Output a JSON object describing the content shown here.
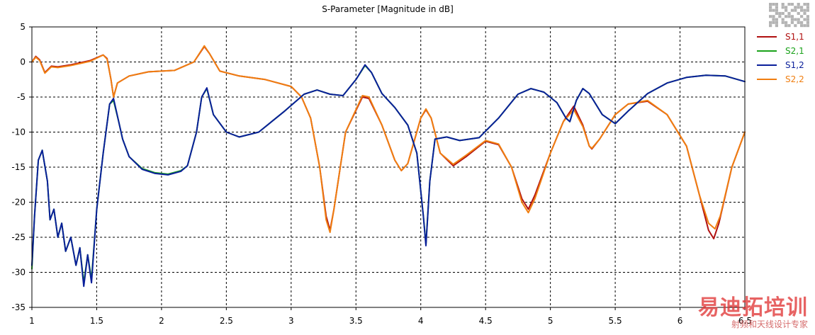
{
  "chart_data": {
    "type": "line",
    "title": "S-Parameter [Magnitude in dB]",
    "xlabel": "",
    "ylabel": "",
    "xlim": [
      1,
      6.5
    ],
    "ylim": [
      -35,
      5
    ],
    "xticks": [
      1,
      1.5,
      2,
      2.5,
      3,
      3.5,
      4,
      4.5,
      5,
      5.5,
      6,
      6.5
    ],
    "xtick_labels": [
      "1",
      "1.5",
      "2",
      "2.5",
      "3",
      "3.5",
      "4",
      "4.5",
      "5",
      "5.5",
      "6",
      "6.5"
    ],
    "yticks": [
      5,
      0,
      -5,
      -10,
      -15,
      -20,
      -25,
      -30,
      -35
    ],
    "ytick_labels": [
      "5",
      "0",
      "-5",
      "-10",
      "-15",
      "-20",
      "-25",
      "-30",
      "-35"
    ],
    "grid": true,
    "legend_position": "right",
    "series": [
      {
        "name": "S1,1",
        "color": "#b01010",
        "points": [
          [
            1.0,
            0.0
          ],
          [
            1.03,
            0.8
          ],
          [
            1.06,
            0.3
          ],
          [
            1.1,
            -1.5
          ],
          [
            1.15,
            -0.6
          ],
          [
            1.2,
            -0.7
          ],
          [
            1.3,
            -0.4
          ],
          [
            1.45,
            0.2
          ],
          [
            1.55,
            1.0
          ],
          [
            1.58,
            0.5
          ],
          [
            1.61,
            -2.5
          ],
          [
            1.63,
            -5.0
          ],
          [
            1.66,
            -3.0
          ],
          [
            1.75,
            -2.0
          ],
          [
            1.9,
            -1.4
          ],
          [
            2.1,
            -1.2
          ],
          [
            2.25,
            0.0
          ],
          [
            2.33,
            2.2
          ],
          [
            2.37,
            1.2
          ],
          [
            2.45,
            -1.3
          ],
          [
            2.6,
            -2.0
          ],
          [
            2.8,
            -2.5
          ],
          [
            3.0,
            -3.5
          ],
          [
            3.08,
            -5.0
          ],
          [
            3.15,
            -8.0
          ],
          [
            3.22,
            -15.0
          ],
          [
            3.27,
            -22.0
          ],
          [
            3.3,
            -24.0
          ],
          [
            3.33,
            -21.0
          ],
          [
            3.42,
            -10.0
          ],
          [
            3.55,
            -5.0
          ],
          [
            3.6,
            -5.2
          ],
          [
            3.7,
            -9.0
          ],
          [
            3.8,
            -14.0
          ],
          [
            3.85,
            -15.5
          ],
          [
            3.9,
            -14.5
          ],
          [
            4.0,
            -8.0
          ],
          [
            4.04,
            -6.8
          ],
          [
            4.08,
            -8.0
          ],
          [
            4.15,
            -13.0
          ],
          [
            4.25,
            -14.8
          ],
          [
            4.35,
            -13.5
          ],
          [
            4.5,
            -11.3
          ],
          [
            4.6,
            -11.8
          ],
          [
            4.7,
            -15.0
          ],
          [
            4.78,
            -19.5
          ],
          [
            4.83,
            -21.0
          ],
          [
            4.88,
            -19.0
          ],
          [
            5.0,
            -13.0
          ],
          [
            5.1,
            -8.5
          ],
          [
            5.18,
            -6.3
          ],
          [
            5.25,
            -9.0
          ],
          [
            5.3,
            -12.0
          ],
          [
            5.32,
            -12.4
          ],
          [
            5.38,
            -11.0
          ],
          [
            5.5,
            -7.5
          ],
          [
            5.6,
            -6.0
          ],
          [
            5.75,
            -5.6
          ],
          [
            5.9,
            -7.5
          ],
          [
            6.05,
            -12.0
          ],
          [
            6.15,
            -19.0
          ],
          [
            6.22,
            -24.0
          ],
          [
            6.26,
            -25.2
          ],
          [
            6.3,
            -23.0
          ],
          [
            6.4,
            -15.0
          ],
          [
            6.5,
            -10.0
          ]
        ]
      },
      {
        "name": "S2,1",
        "color": "#1aa21a",
        "points": [
          [
            1.0,
            -29.5
          ],
          [
            1.02,
            -22.0
          ],
          [
            1.05,
            -14.0
          ],
          [
            1.08,
            -12.6
          ],
          [
            1.12,
            -17.0
          ],
          [
            1.14,
            -22.5
          ],
          [
            1.17,
            -21.0
          ],
          [
            1.2,
            -25.0
          ],
          [
            1.23,
            -23.0
          ],
          [
            1.26,
            -27.0
          ],
          [
            1.3,
            -25.0
          ],
          [
            1.34,
            -29.0
          ],
          [
            1.37,
            -26.5
          ],
          [
            1.4,
            -31.5
          ],
          [
            1.43,
            -27.5
          ],
          [
            1.46,
            -31.0
          ],
          [
            1.5,
            -21.0
          ],
          [
            1.55,
            -13.0
          ],
          [
            1.6,
            -6.0
          ],
          [
            1.63,
            -5.5
          ],
          [
            1.67,
            -8.5
          ],
          [
            1.7,
            -11.0
          ],
          [
            1.75,
            -13.5
          ],
          [
            1.85,
            -15.2
          ],
          [
            1.95,
            -15.8
          ],
          [
            2.05,
            -16.0
          ],
          [
            2.15,
            -15.5
          ],
          [
            2.2,
            -14.8
          ],
          [
            2.27,
            -10.0
          ],
          [
            2.31,
            -5.0
          ],
          [
            2.35,
            -3.8
          ],
          [
            2.4,
            -7.5
          ],
          [
            2.5,
            -10.0
          ],
          [
            2.6,
            -10.7
          ],
          [
            2.75,
            -10.0
          ],
          [
            2.95,
            -7.0
          ],
          [
            3.1,
            -4.6
          ],
          [
            3.2,
            -4.0
          ],
          [
            3.3,
            -4.6
          ],
          [
            3.4,
            -4.8
          ],
          [
            3.5,
            -2.5
          ],
          [
            3.57,
            -0.5
          ],
          [
            3.62,
            -1.5
          ],
          [
            3.7,
            -4.5
          ],
          [
            3.8,
            -6.5
          ],
          [
            3.9,
            -9.0
          ],
          [
            3.97,
            -13.0
          ],
          [
            4.02,
            -22.0
          ],
          [
            4.04,
            -26.0
          ],
          [
            4.07,
            -17.0
          ],
          [
            4.11,
            -11.0
          ],
          [
            4.2,
            -10.7
          ],
          [
            4.3,
            -11.2
          ],
          [
            4.45,
            -10.8
          ],
          [
            4.6,
            -8.0
          ],
          [
            4.75,
            -4.6
          ],
          [
            4.85,
            -3.8
          ],
          [
            4.95,
            -4.3
          ],
          [
            5.05,
            -5.8
          ],
          [
            5.12,
            -8.0
          ],
          [
            5.15,
            -8.5
          ],
          [
            5.2,
            -5.5
          ],
          [
            5.25,
            -3.8
          ],
          [
            5.3,
            -4.5
          ],
          [
            5.4,
            -7.5
          ],
          [
            5.5,
            -8.8
          ],
          [
            5.6,
            -7.0
          ],
          [
            5.75,
            -4.5
          ],
          [
            5.9,
            -3.0
          ],
          [
            6.05,
            -2.2
          ],
          [
            6.2,
            -1.9
          ],
          [
            6.35,
            -2.0
          ],
          [
            6.5,
            -2.8
          ]
        ]
      },
      {
        "name": "S1,2",
        "color": "#0a1f9a",
        "points": [
          [
            1.0,
            -29.0
          ],
          [
            1.02,
            -22.0
          ],
          [
            1.05,
            -14.0
          ],
          [
            1.08,
            -12.6
          ],
          [
            1.12,
            -17.0
          ],
          [
            1.14,
            -22.5
          ],
          [
            1.17,
            -21.0
          ],
          [
            1.2,
            -25.0
          ],
          [
            1.23,
            -23.0
          ],
          [
            1.26,
            -27.0
          ],
          [
            1.3,
            -25.0
          ],
          [
            1.34,
            -29.0
          ],
          [
            1.37,
            -26.5
          ],
          [
            1.4,
            -32.0
          ],
          [
            1.43,
            -27.5
          ],
          [
            1.46,
            -31.5
          ],
          [
            1.5,
            -21.0
          ],
          [
            1.55,
            -13.0
          ],
          [
            1.6,
            -6.0
          ],
          [
            1.63,
            -5.2
          ],
          [
            1.67,
            -8.5
          ],
          [
            1.7,
            -11.0
          ],
          [
            1.75,
            -13.5
          ],
          [
            1.85,
            -15.3
          ],
          [
            1.95,
            -15.9
          ],
          [
            2.05,
            -16.1
          ],
          [
            2.15,
            -15.6
          ],
          [
            2.2,
            -14.8
          ],
          [
            2.27,
            -10.0
          ],
          [
            2.31,
            -5.0
          ],
          [
            2.35,
            -3.7
          ],
          [
            2.4,
            -7.5
          ],
          [
            2.5,
            -10.0
          ],
          [
            2.6,
            -10.7
          ],
          [
            2.75,
            -10.0
          ],
          [
            2.95,
            -7.0
          ],
          [
            3.1,
            -4.6
          ],
          [
            3.2,
            -4.0
          ],
          [
            3.3,
            -4.6
          ],
          [
            3.4,
            -4.8
          ],
          [
            3.5,
            -2.5
          ],
          [
            3.57,
            -0.4
          ],
          [
            3.62,
            -1.5
          ],
          [
            3.7,
            -4.5
          ],
          [
            3.8,
            -6.5
          ],
          [
            3.9,
            -9.0
          ],
          [
            3.97,
            -13.0
          ],
          [
            4.02,
            -22.0
          ],
          [
            4.04,
            -26.2
          ],
          [
            4.07,
            -17.0
          ],
          [
            4.11,
            -11.0
          ],
          [
            4.2,
            -10.7
          ],
          [
            4.3,
            -11.2
          ],
          [
            4.45,
            -10.8
          ],
          [
            4.6,
            -8.0
          ],
          [
            4.75,
            -4.6
          ],
          [
            4.85,
            -3.8
          ],
          [
            4.95,
            -4.3
          ],
          [
            5.05,
            -5.8
          ],
          [
            5.12,
            -8.0
          ],
          [
            5.15,
            -8.5
          ],
          [
            5.2,
            -5.5
          ],
          [
            5.25,
            -3.8
          ],
          [
            5.3,
            -4.5
          ],
          [
            5.4,
            -7.5
          ],
          [
            5.5,
            -8.8
          ],
          [
            5.6,
            -7.0
          ],
          [
            5.75,
            -4.5
          ],
          [
            5.9,
            -3.0
          ],
          [
            6.05,
            -2.2
          ],
          [
            6.2,
            -1.9
          ],
          [
            6.35,
            -2.0
          ],
          [
            6.5,
            -2.8
          ]
        ]
      },
      {
        "name": "S2,2",
        "color": "#f07e10",
        "points": [
          [
            1.0,
            0.0
          ],
          [
            1.03,
            0.7
          ],
          [
            1.06,
            0.2
          ],
          [
            1.1,
            -1.6
          ],
          [
            1.15,
            -0.7
          ],
          [
            1.2,
            -0.8
          ],
          [
            1.3,
            -0.5
          ],
          [
            1.45,
            0.1
          ],
          [
            1.55,
            1.0
          ],
          [
            1.58,
            0.4
          ],
          [
            1.61,
            -2.5
          ],
          [
            1.63,
            -5.0
          ],
          [
            1.66,
            -3.0
          ],
          [
            1.75,
            -2.0
          ],
          [
            1.9,
            -1.4
          ],
          [
            2.1,
            -1.2
          ],
          [
            2.25,
            0.0
          ],
          [
            2.33,
            2.3
          ],
          [
            2.37,
            1.2
          ],
          [
            2.45,
            -1.3
          ],
          [
            2.6,
            -2.0
          ],
          [
            2.8,
            -2.5
          ],
          [
            3.0,
            -3.5
          ],
          [
            3.08,
            -5.0
          ],
          [
            3.15,
            -8.0
          ],
          [
            3.22,
            -15.0
          ],
          [
            3.27,
            -22.5
          ],
          [
            3.3,
            -24.3
          ],
          [
            3.33,
            -21.0
          ],
          [
            3.42,
            -10.0
          ],
          [
            3.55,
            -4.8
          ],
          [
            3.6,
            -5.0
          ],
          [
            3.7,
            -9.0
          ],
          [
            3.8,
            -14.0
          ],
          [
            3.85,
            -15.5
          ],
          [
            3.9,
            -14.5
          ],
          [
            4.0,
            -8.0
          ],
          [
            4.04,
            -6.7
          ],
          [
            4.08,
            -8.0
          ],
          [
            4.15,
            -13.0
          ],
          [
            4.25,
            -14.6
          ],
          [
            4.35,
            -13.3
          ],
          [
            4.5,
            -11.2
          ],
          [
            4.6,
            -11.7
          ],
          [
            4.7,
            -15.0
          ],
          [
            4.78,
            -20.0
          ],
          [
            4.83,
            -21.5
          ],
          [
            4.88,
            -19.5
          ],
          [
            5.0,
            -13.0
          ],
          [
            5.1,
            -8.5
          ],
          [
            5.18,
            -6.8
          ],
          [
            5.25,
            -9.2
          ],
          [
            5.3,
            -12.0
          ],
          [
            5.32,
            -12.3
          ],
          [
            5.38,
            -11.0
          ],
          [
            5.5,
            -7.5
          ],
          [
            5.6,
            -6.0
          ],
          [
            5.75,
            -5.5
          ],
          [
            5.9,
            -7.5
          ],
          [
            6.05,
            -12.0
          ],
          [
            6.15,
            -19.0
          ],
          [
            6.22,
            -23.0
          ],
          [
            6.27,
            -23.8
          ],
          [
            6.31,
            -22.0
          ],
          [
            6.4,
            -15.0
          ],
          [
            6.5,
            -10.0
          ]
        ]
      }
    ]
  },
  "watermark": {
    "main": "易迪拓培训",
    "sub": "射频和天线设计专家"
  }
}
